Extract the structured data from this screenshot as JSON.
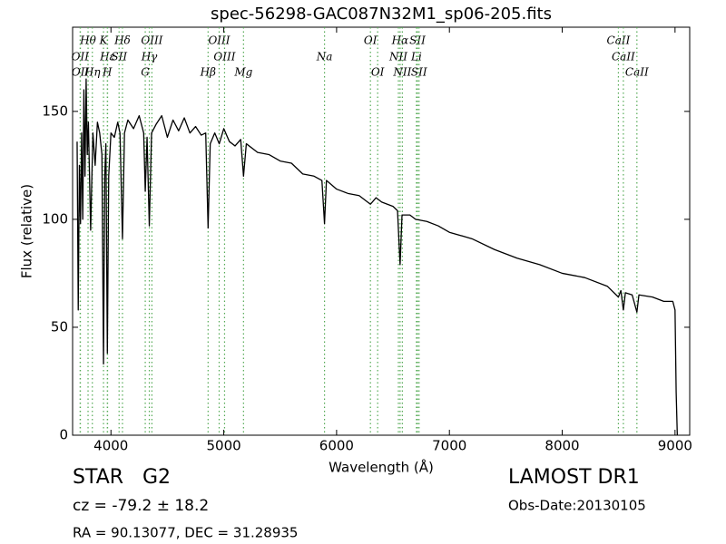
{
  "chart_data": {
    "type": "line",
    "title": "spec-56298-GAC087N32M1_sp06-205.fits",
    "x_label": "Wavelength (Å)",
    "y_label": "Flux (relative)",
    "xlim": [
      3660,
      9130
    ],
    "ylim": [
      0,
      189
    ],
    "xticks": [
      4000,
      5000,
      6000,
      7000,
      8000,
      9000
    ],
    "yticks": [
      0,
      50,
      100,
      150
    ],
    "x": [
      3700,
      3710,
      3720,
      3730,
      3740,
      3750,
      3760,
      3770,
      3780,
      3790,
      3800,
      3820,
      3840,
      3860,
      3880,
      3900,
      3920,
      3934,
      3945,
      3955,
      3968,
      3980,
      4000,
      4030,
      4060,
      4080,
      4102,
      4120,
      4150,
      4200,
      4250,
      4290,
      4304,
      4320,
      4340,
      4360,
      4400,
      4450,
      4500,
      4550,
      4600,
      4650,
      4700,
      4750,
      4800,
      4840,
      4861,
      4880,
      4920,
      4960,
      5000,
      5050,
      5100,
      5150,
      5175,
      5200,
      5300,
      5400,
      5500,
      5600,
      5700,
      5800,
      5870,
      5893,
      5910,
      6000,
      6100,
      6200,
      6300,
      6350,
      6400,
      6500,
      6540,
      6563,
      6580,
      6650,
      6700,
      6800,
      6900,
      7000,
      7200,
      7400,
      7600,
      7800,
      8000,
      8200,
      8400,
      8498,
      8520,
      8542,
      8560,
      8620,
      8662,
      8680,
      8800,
      8900,
      8980,
      9000,
      9010,
      9020
    ],
    "series": [
      {
        "color": "#000000",
        "values": [
          136,
          58,
          125,
          98,
          140,
          100,
          160,
          120,
          165,
          130,
          145,
          95,
          140,
          125,
          145,
          140,
          130,
          33,
          120,
          135,
          38,
          120,
          140,
          138,
          145,
          140,
          91,
          140,
          146,
          142,
          148,
          140,
          113,
          138,
          97,
          140,
          144,
          148,
          138,
          146,
          141,
          147,
          140,
          143,
          139,
          140,
          96,
          135,
          140,
          135,
          142,
          136,
          134,
          137,
          120,
          135,
          131,
          130,
          127,
          126,
          121,
          120,
          118,
          98,
          118,
          114,
          112,
          111,
          107,
          110,
          108,
          106,
          104,
          79,
          102,
          102,
          100,
          99,
          97,
          94,
          91,
          86,
          82,
          79,
          75,
          73,
          69,
          64,
          67,
          58,
          66,
          65,
          57,
          65,
          64,
          62,
          62,
          58,
          20,
          0
        ]
      }
    ],
    "line_color": "#55aa55",
    "line_labels": [
      [
        {
          "wavelength": 3797,
          "label": "Hθ"
        },
        {
          "wavelength": 3934,
          "label": "K"
        },
        {
          "wavelength": 4102,
          "label": "Hδ"
        },
        {
          "wavelength": 4363,
          "label": "OIII"
        },
        {
          "wavelength": 4959,
          "label": "OIII"
        },
        {
          "wavelength": 6300,
          "label": "OI"
        },
        {
          "wavelength": 6563,
          "label": "Hα"
        },
        {
          "wavelength": 6717,
          "label": "SII"
        },
        {
          "wavelength": 8498,
          "label": "CaII"
        }
      ],
      [
        {
          "wavelength": 3727,
          "label": "OII"
        },
        {
          "wavelength": 3970,
          "label": "Hε"
        },
        {
          "wavelength": 4072,
          "label": "SII"
        },
        {
          "wavelength": 4340,
          "label": "Hγ"
        },
        {
          "wavelength": 5007,
          "label": "OIII"
        },
        {
          "wavelength": 5893,
          "label": "Na"
        },
        {
          "wavelength": 6548,
          "label": "NII"
        },
        {
          "wavelength": 6708,
          "label": "Li"
        },
        {
          "wavelength": 8542,
          "label": "CaII"
        }
      ],
      [
        {
          "wavelength": 3729,
          "label": "OII"
        },
        {
          "wavelength": 3835,
          "label": "Hη"
        },
        {
          "wavelength": 3968,
          "label": "H"
        },
        {
          "wavelength": 4304,
          "label": "G"
        },
        {
          "wavelength": 4861,
          "label": "Hβ"
        },
        {
          "wavelength": 5175,
          "label": "Mg"
        },
        {
          "wavelength": 6364,
          "label": "OI"
        },
        {
          "wavelength": 6583,
          "label": "NII"
        },
        {
          "wavelength": 6731,
          "label": "SII"
        },
        {
          "wavelength": 8662,
          "label": "CaII"
        }
      ]
    ],
    "info_left": [
      "STAR   G2",
      "cz = -79.2 ± 18.2",
      "RA = 90.13077, DEC = 31.28935"
    ],
    "info_right": [
      "LAMOST DR1",
      "Obs-Date:20130105"
    ]
  }
}
